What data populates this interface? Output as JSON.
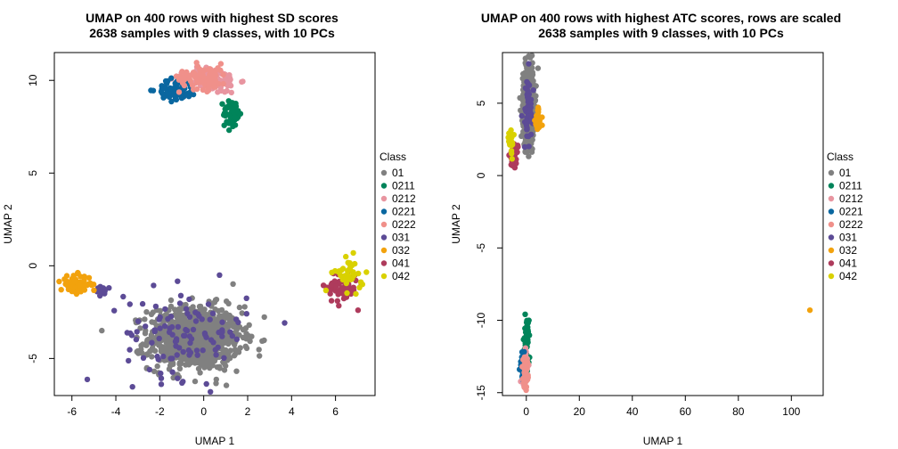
{
  "chart_data": [
    {
      "type": "scatter",
      "title": "UMAP on 400 rows with highest SD scores\n2638 samples with 9 classes, with 10 PCs",
      "xlabel": "UMAP 1",
      "ylabel": "UMAP 2",
      "xlim": [
        -6.8,
        7.8
      ],
      "ylim": [
        -7.0,
        11.5
      ],
      "xticks": [
        -6,
        -4,
        -2,
        0,
        2,
        4,
        6
      ],
      "yticks": [
        -5,
        0,
        5,
        10
      ],
      "legend": {
        "title": "Class",
        "placement": "right",
        "entries": [
          "01",
          "0211",
          "0212",
          "0221",
          "0222",
          "031",
          "032",
          "041",
          "042"
        ]
      },
      "series": [
        {
          "name": "01",
          "color": "#808080",
          "count": 900,
          "clusters": [
            {
              "cx": -0.4,
              "cy": -3.9,
              "sx": 1.05,
              "sy": 0.85,
              "w": 1
            }
          ]
        },
        {
          "name": "0211",
          "color": "#00845A",
          "count": 55,
          "clusters": [
            {
              "cx": 1.3,
              "cy": 8.2,
              "sx": 0.2,
              "sy": 0.4,
              "w": 1
            }
          ]
        },
        {
          "name": "0212",
          "color": "#E895A0",
          "count": 95,
          "clusters": [
            {
              "cx": 0.4,
              "cy": 10.0,
              "sx": 0.6,
              "sy": 0.35,
              "w": 1
            }
          ]
        },
        {
          "name": "0221",
          "color": "#0A67A0",
          "count": 70,
          "clusters": [
            {
              "cx": -1.2,
              "cy": 9.5,
              "sx": 0.45,
              "sy": 0.3,
              "w": 1
            }
          ]
        },
        {
          "name": "0222",
          "color": "#F0908A",
          "count": 90,
          "clusters": [
            {
              "cx": 0.0,
              "cy": 10.2,
              "sx": 0.55,
              "sy": 0.35,
              "w": 1
            }
          ]
        },
        {
          "name": "031",
          "color": "#5C4B96",
          "count": 120,
          "clusters": [
            {
              "cx": -0.8,
              "cy": -3.6,
              "sx": 1.4,
              "sy": 1.2,
              "w": 0.9
            },
            {
              "cx": -4.7,
              "cy": -1.4,
              "sx": 0.2,
              "sy": 0.15,
              "w": 0.1
            }
          ]
        },
        {
          "name": "032",
          "color": "#F2A20D",
          "count": 70,
          "clusters": [
            {
              "cx": -5.8,
              "cy": -1.0,
              "sx": 0.35,
              "sy": 0.25,
              "w": 1
            }
          ]
        },
        {
          "name": "041",
          "color": "#AE3B5C",
          "count": 75,
          "clusters": [
            {
              "cx": 6.3,
              "cy": -1.1,
              "sx": 0.35,
              "sy": 0.45,
              "w": 1
            }
          ]
        },
        {
          "name": "042",
          "color": "#D9D100",
          "count": 40,
          "clusters": [
            {
              "cx": 6.6,
              "cy": -0.5,
              "sx": 0.35,
              "sy": 0.45,
              "w": 1
            }
          ]
        }
      ]
    },
    {
      "type": "scatter",
      "title": "UMAP on 400 rows with highest ATC scores, rows are scaled\n2638 samples with 9 classes, with 10 PCs",
      "xlabel": "UMAP 1",
      "ylabel": "UMAP 2",
      "xlim": [
        -9.0,
        112.0
      ],
      "ylim": [
        -15.2,
        8.5
      ],
      "xticks": [
        0,
        20,
        40,
        60,
        80,
        100
      ],
      "yticks": [
        -15,
        -10,
        -5,
        0,
        5
      ],
      "legend": {
        "title": "Class",
        "placement": "right",
        "entries": [
          "01",
          "0211",
          "0212",
          "0221",
          "0222",
          "031",
          "032",
          "041",
          "042"
        ]
      },
      "series": [
        {
          "name": "01",
          "color": "#808080",
          "count": 900,
          "clusters": [
            {
              "cx": 0.8,
              "cy": 4.8,
              "sx": 1.0,
              "sy": 1.2,
              "w": 1
            }
          ]
        },
        {
          "name": "0211",
          "color": "#00845A",
          "count": 50,
          "clusters": [
            {
              "cx": 0.2,
              "cy": -11.5,
              "sx": 0.4,
              "sy": 0.8,
              "w": 1
            }
          ]
        },
        {
          "name": "0212",
          "color": "#E895A0",
          "count": 70,
          "clusters": [
            {
              "cx": -0.6,
              "cy": -13.2,
              "sx": 0.5,
              "sy": 0.6,
              "w": 1
            }
          ]
        },
        {
          "name": "0221",
          "color": "#0A67A0",
          "count": 40,
          "clusters": [
            {
              "cx": -1.3,
              "cy": -13.2,
              "sx": 0.5,
              "sy": 0.5,
              "w": 1
            }
          ]
        },
        {
          "name": "0222",
          "color": "#F0908A",
          "count": 60,
          "clusters": [
            {
              "cx": -0.3,
              "cy": -13.6,
              "sx": 0.45,
              "sy": 0.5,
              "w": 1
            }
          ]
        },
        {
          "name": "031",
          "color": "#5C4B96",
          "count": 60,
          "clusters": [
            {
              "cx": 0.6,
              "cy": 4.4,
              "sx": 1.1,
              "sy": 1.3,
              "w": 1
            }
          ]
        },
        {
          "name": "032",
          "color": "#F2A20D",
          "count": 40,
          "clusters": [
            {
              "cx": 4.5,
              "cy": 3.8,
              "sx": 0.6,
              "sy": 0.45,
              "w": 1
            }
          ]
        },
        {
          "name": "041",
          "color": "#AE3B5C",
          "count": 40,
          "clusters": [
            {
              "cx": -4.8,
              "cy": 1.3,
              "sx": 0.8,
              "sy": 0.35,
              "w": 1
            }
          ]
        },
        {
          "name": "042",
          "color": "#D9D100",
          "count": 30,
          "clusters": [
            {
              "cx": -5.8,
              "cy": 2.4,
              "sx": 0.5,
              "sy": 0.4,
              "w": 1
            }
          ]
        }
      ],
      "extra_points": [
        {
          "series": "032",
          "x": 107.0,
          "y": -9.3
        }
      ]
    }
  ]
}
